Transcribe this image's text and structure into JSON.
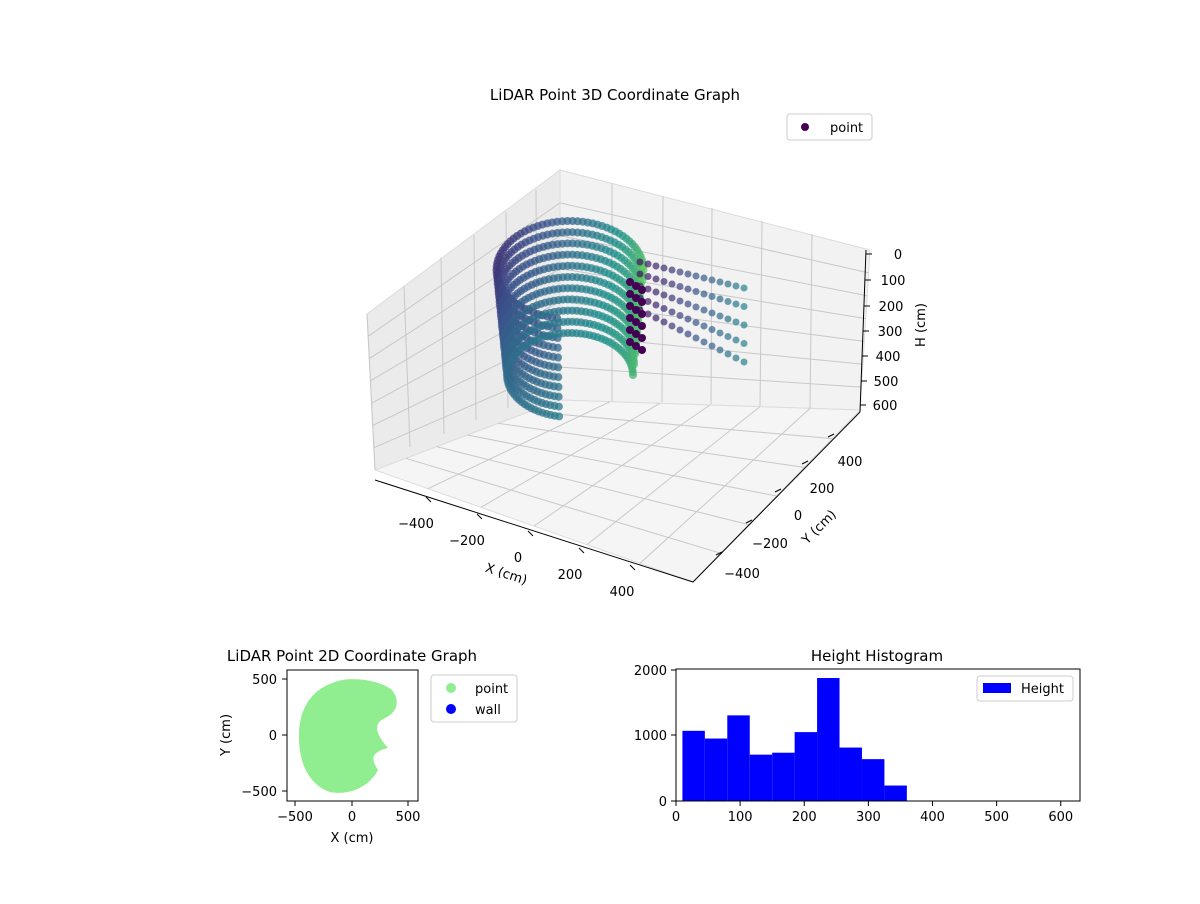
{
  "chart_data": [
    {
      "type": "scatter",
      "title": "LiDAR Point 3D Coordinate Graph",
      "projection": "3d",
      "xlabel": "X (cm)",
      "ylabel": "Y (cm)",
      "zlabel": "H (cm)",
      "xlim": [
        -500,
        500
      ],
      "ylim": [
        -500,
        500
      ],
      "zlim": [
        0,
        600
      ],
      "z_inverted": true,
      "x_ticks": [
        "−400",
        "−200",
        "0",
        "200",
        "400"
      ],
      "y_ticks": [
        "−400",
        "−200",
        "0",
        "200",
        "400"
      ],
      "z_ticks": [
        "0",
        "100",
        "200",
        "300",
        "400",
        "500",
        "600"
      ],
      "grid": true,
      "colormap": "viridis",
      "legend": [
        "point"
      ],
      "legend_location": "top-right",
      "series": [
        {
          "name": "point",
          "description_shape": "curved wall sweeping around roughly 3/4 of a ring of radius about 450 cm, height about 0 to 350 cm",
          "radius_approx": 450,
          "height_range": [
            0,
            350
          ]
        }
      ]
    },
    {
      "type": "scatter",
      "title": "LiDAR Point 2D Coordinate Graph",
      "xlabel": "X (cm)",
      "ylabel": "Y (cm)",
      "xlim": [
        -560,
        560
      ],
      "ylim": [
        -560,
        560
      ],
      "x_ticks": [
        "−500",
        "0",
        "500"
      ],
      "y_ticks": [
        "−500",
        "0",
        "500"
      ],
      "legend": [
        "point",
        "wall"
      ],
      "legend_location": "outside-right",
      "series": [
        {
          "name": "point",
          "color": "#90ee90"
        },
        {
          "name": "wall",
          "color": "#0000ff"
        }
      ]
    },
    {
      "type": "bar",
      "title": "Height Histogram",
      "xlabel": "",
      "ylabel": "",
      "xlim": [
        0,
        630
      ],
      "ylim": [
        0,
        2050
      ],
      "x_ticks": [
        "0",
        "100",
        "200",
        "300",
        "400",
        "500",
        "600"
      ],
      "y_ticks": [
        "0",
        "1000",
        "2000"
      ],
      "legend": [
        "Height"
      ],
      "legend_location": "top-right",
      "bar_color": "#0000ff",
      "bins": [
        {
          "x0": 10,
          "x1": 45,
          "value": 1090
        },
        {
          "x0": 45,
          "x1": 80,
          "value": 970
        },
        {
          "x0": 80,
          "x1": 115,
          "value": 1330
        },
        {
          "x0": 115,
          "x1": 150,
          "value": 720
        },
        {
          "x0": 150,
          "x1": 185,
          "value": 750
        },
        {
          "x0": 185,
          "x1": 220,
          "value": 1070
        },
        {
          "x0": 220,
          "x1": 255,
          "value": 1910
        },
        {
          "x0": 255,
          "x1": 290,
          "value": 830
        },
        {
          "x0": 290,
          "x1": 325,
          "value": 650
        },
        {
          "x0": 325,
          "x1": 360,
          "value": 240
        }
      ]
    }
  ]
}
